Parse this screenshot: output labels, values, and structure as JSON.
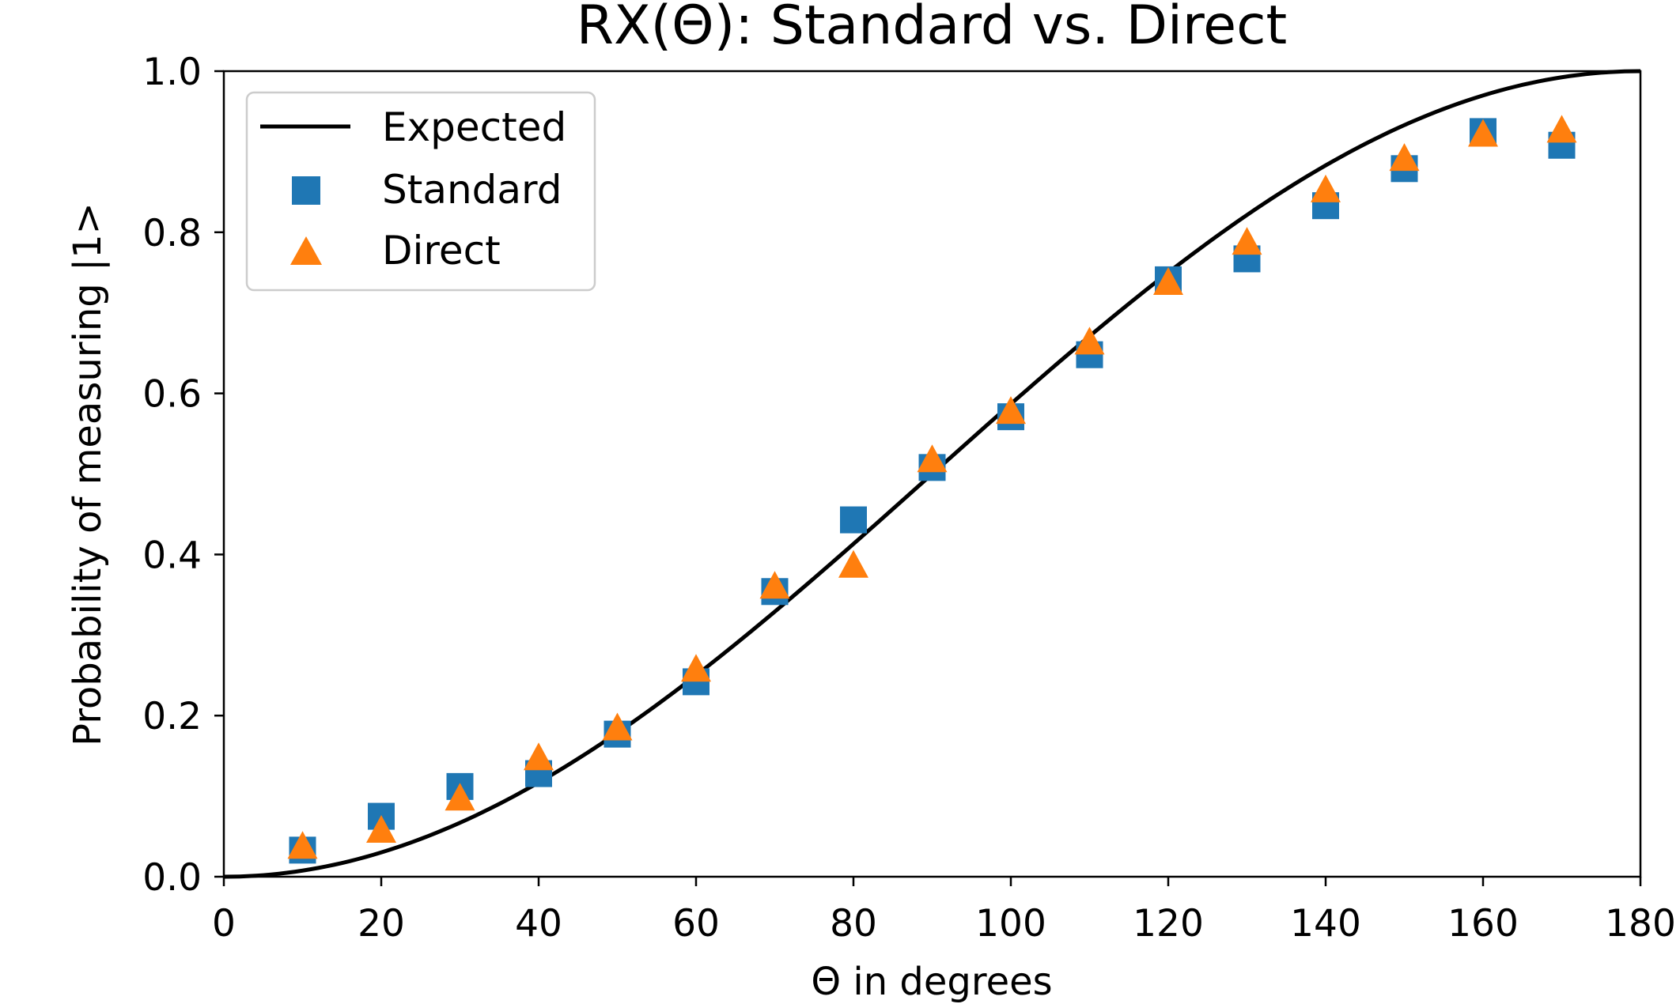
{
  "chart_data": {
    "type": "scatter",
    "title": "RX(Θ): Standard vs. Direct",
    "xlabel": "Θ in degrees",
    "ylabel": "Probability of measuring |1>",
    "xlim": [
      0,
      180
    ],
    "ylim": [
      0.0,
      1.0
    ],
    "xticks": [
      0,
      20,
      40,
      60,
      80,
      100,
      120,
      140,
      160,
      180
    ],
    "xtick_labels": [
      "0",
      "20",
      "40",
      "60",
      "80",
      "100",
      "120",
      "140",
      "160",
      "180"
    ],
    "yticks": [
      0.0,
      0.2,
      0.4,
      0.6,
      0.8,
      1.0
    ],
    "ytick_labels": [
      "0.0",
      "0.2",
      "0.4",
      "0.6",
      "0.8",
      "1.0"
    ],
    "grid": false,
    "legend": {
      "placement": "upper-left",
      "entries": [
        "Expected",
        "Standard",
        "Direct"
      ]
    },
    "series": [
      {
        "name": "Expected",
        "kind": "line",
        "function": "sin^2(theta/2)",
        "color": "#000000"
      },
      {
        "name": "Standard",
        "kind": "scatter",
        "marker": "square",
        "color": "#1f77b4",
        "x": [
          10,
          20,
          30,
          40,
          50,
          60,
          70,
          80,
          90,
          100,
          110,
          120,
          130,
          140,
          150,
          160,
          170
        ],
        "y": [
          0.033,
          0.075,
          0.112,
          0.128,
          0.177,
          0.242,
          0.354,
          0.443,
          0.508,
          0.571,
          0.648,
          0.741,
          0.767,
          0.833,
          0.879,
          0.925,
          0.908
        ]
      },
      {
        "name": "Direct",
        "kind": "scatter",
        "marker": "triangle",
        "color": "#ff7f0e",
        "x": [
          10,
          20,
          30,
          40,
          50,
          60,
          70,
          80,
          90,
          100,
          110,
          120,
          130,
          140,
          150,
          160,
          170
        ],
        "y": [
          0.035,
          0.055,
          0.095,
          0.145,
          0.182,
          0.255,
          0.358,
          0.384,
          0.515,
          0.575,
          0.661,
          0.735,
          0.785,
          0.85,
          0.889,
          0.919,
          0.924
        ]
      }
    ]
  }
}
